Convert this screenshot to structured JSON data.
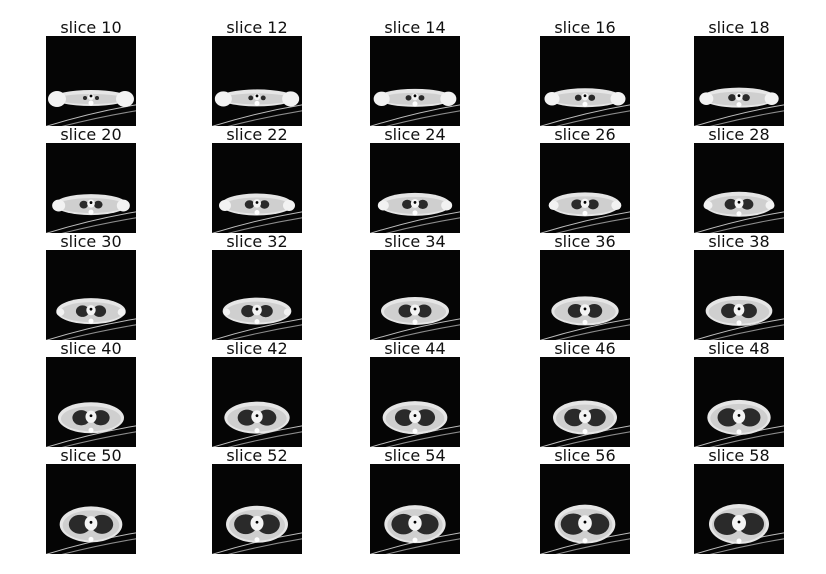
{
  "figure": {
    "panels": [
      {
        "title": "slice 10",
        "slice": 10
      },
      {
        "title": "slice 12",
        "slice": 12
      },
      {
        "title": "slice 14",
        "slice": 14
      },
      {
        "title": "slice 16",
        "slice": 16
      },
      {
        "title": "slice 18",
        "slice": 18
      },
      {
        "title": "slice 20",
        "slice": 20
      },
      {
        "title": "slice 22",
        "slice": 22
      },
      {
        "title": "slice 24",
        "slice": 24
      },
      {
        "title": "slice 26",
        "slice": 26
      },
      {
        "title": "slice 28",
        "slice": 28
      },
      {
        "title": "slice 30",
        "slice": 30
      },
      {
        "title": "slice 32",
        "slice": 32
      },
      {
        "title": "slice 34",
        "slice": 34
      },
      {
        "title": "slice 36",
        "slice": 36
      },
      {
        "title": "slice 38",
        "slice": 38
      },
      {
        "title": "slice 40",
        "slice": 40
      },
      {
        "title": "slice 42",
        "slice": 42
      },
      {
        "title": "slice 44",
        "slice": 44
      },
      {
        "title": "slice 46",
        "slice": 46
      },
      {
        "title": "slice 48",
        "slice": 48
      },
      {
        "title": "slice 50",
        "slice": 50
      },
      {
        "title": "slice 52",
        "slice": 52
      },
      {
        "title": "slice 54",
        "slice": 54
      },
      {
        "title": "slice 56",
        "slice": 56
      },
      {
        "title": "slice 58",
        "slice": 58
      }
    ]
  }
}
